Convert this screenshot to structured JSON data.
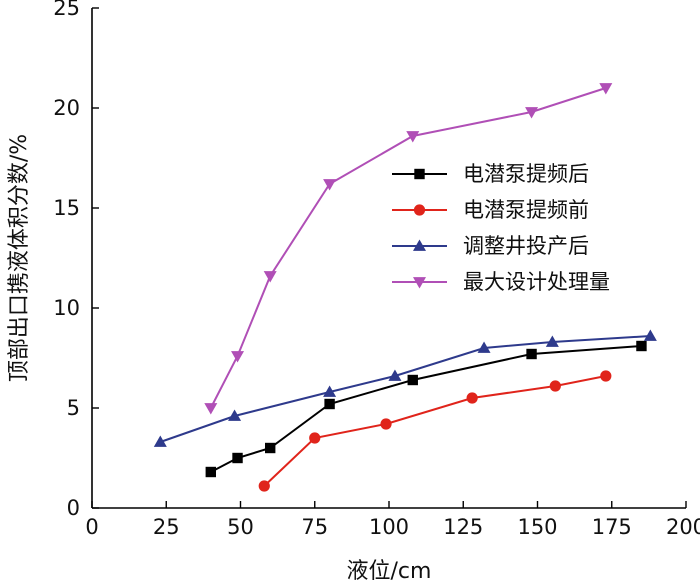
{
  "chart_data": {
    "type": "line",
    "xlabel": "液位/cm",
    "ylabel": "顶部出口携液体积分数/%",
    "xlim": [
      0,
      200
    ],
    "ylim": [
      0,
      25
    ],
    "xticks": [
      "0",
      "25",
      "50",
      "75",
      "100",
      "125",
      "150",
      "175",
      "200"
    ],
    "yticks": [
      "0",
      "5",
      "10",
      "15",
      "20",
      "25"
    ],
    "grid": false,
    "legend_position": "right-middle",
    "series": [
      {
        "name": "电潜泵提频后",
        "color": "#000000",
        "marker": "square",
        "x": [
          40,
          49,
          60,
          80,
          108,
          148,
          185
        ],
        "y": [
          1.8,
          2.5,
          3.0,
          5.2,
          6.4,
          7.7,
          8.1
        ]
      },
      {
        "name": "电潜泵提频前",
        "color": "#e0241b",
        "marker": "circle",
        "x": [
          58,
          75,
          99,
          128,
          156,
          173
        ],
        "y": [
          1.1,
          3.5,
          4.2,
          5.5,
          6.1,
          6.6
        ]
      },
      {
        "name": "调整井投产后",
        "color": "#2e3a8c",
        "marker": "triangle-up",
        "x": [
          23,
          48,
          80,
          102,
          132,
          155,
          188
        ],
        "y": [
          3.3,
          4.6,
          5.8,
          6.6,
          8.0,
          8.3,
          8.6
        ]
      },
      {
        "name": "最大设计处理量",
        "color": "#b04fb6",
        "marker": "triangle-down",
        "x": [
          40,
          49,
          60,
          80,
          108,
          148,
          173
        ],
        "y": [
          5.0,
          7.6,
          11.6,
          16.2,
          18.6,
          19.8,
          21.0
        ]
      }
    ]
  }
}
